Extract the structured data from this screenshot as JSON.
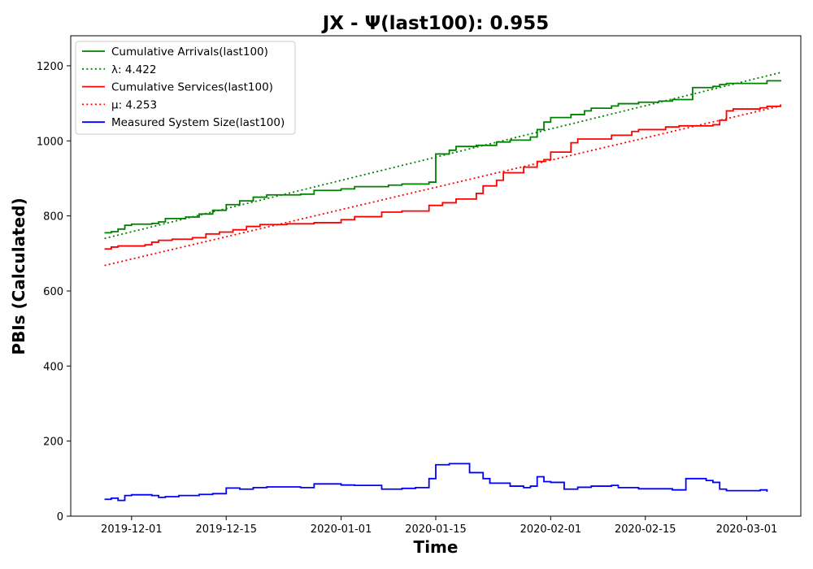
{
  "chart_data": {
    "type": "line",
    "title": "JX -  Ψ(last100): 0.955",
    "xlabel": "Time",
    "ylabel": "PBIs (Calculated)",
    "xlim": [
      "2019-11-22",
      "2020-03-09"
    ],
    "ylim": [
      0,
      1280
    ],
    "x_ticks": [
      "2019-12-01",
      "2019-12-15",
      "2020-01-01",
      "2020-01-15",
      "2020-02-01",
      "2020-02-15",
      "2020-03-01"
    ],
    "y_ticks": [
      0,
      200,
      400,
      600,
      800,
      1000,
      1200
    ],
    "grid": false,
    "legend_position": "top-left",
    "series": [
      {
        "name": "Cumulative Arrivals(last100)",
        "color": "#008000",
        "style": "solid",
        "step": true,
        "points": [
          [
            "2019-11-27",
            755
          ],
          [
            "2019-11-28",
            758
          ],
          [
            "2019-11-29",
            765
          ],
          [
            "2019-11-30",
            775
          ],
          [
            "2019-12-01",
            778
          ],
          [
            "2019-12-04",
            780
          ],
          [
            "2019-12-05",
            784
          ],
          [
            "2019-12-06",
            793
          ],
          [
            "2019-12-09",
            797
          ],
          [
            "2019-12-11",
            805
          ],
          [
            "2019-12-13",
            815
          ],
          [
            "2019-12-15",
            830
          ],
          [
            "2019-12-17",
            840
          ],
          [
            "2019-12-19",
            850
          ],
          [
            "2019-12-21",
            856
          ],
          [
            "2019-12-26",
            858
          ],
          [
            "2019-12-28",
            868
          ],
          [
            "2020-01-01",
            872
          ],
          [
            "2020-01-03",
            878
          ],
          [
            "2020-01-08",
            882
          ],
          [
            "2020-01-10",
            885
          ],
          [
            "2020-01-14",
            890
          ],
          [
            "2020-01-15",
            965
          ],
          [
            "2020-01-17",
            975
          ],
          [
            "2020-01-18",
            985
          ],
          [
            "2020-01-21",
            988
          ],
          [
            "2020-01-24",
            997
          ],
          [
            "2020-01-26",
            1002
          ],
          [
            "2020-01-29",
            1010
          ],
          [
            "2020-01-30",
            1030
          ],
          [
            "2020-01-31",
            1050
          ],
          [
            "2020-02-01",
            1062
          ],
          [
            "2020-02-04",
            1070
          ],
          [
            "2020-02-06",
            1080
          ],
          [
            "2020-02-07",
            1087
          ],
          [
            "2020-02-10",
            1093
          ],
          [
            "2020-02-11",
            1099
          ],
          [
            "2020-02-14",
            1103
          ],
          [
            "2020-02-17",
            1106
          ],
          [
            "2020-02-19",
            1110
          ],
          [
            "2020-02-22",
            1142
          ],
          [
            "2020-02-25",
            1145
          ],
          [
            "2020-02-26",
            1150
          ],
          [
            "2020-02-27",
            1153
          ],
          [
            "2020-03-04",
            1160
          ],
          [
            "2020-03-06",
            1162
          ]
        ]
      },
      {
        "name": "λ: 4.422",
        "color": "#008000",
        "style": "dotted",
        "step": false,
        "points": [
          [
            "2019-11-27",
            740
          ],
          [
            "2020-03-06",
            1182
          ]
        ]
      },
      {
        "name": "Cumulative Services(last100)",
        "color": "#ff0000",
        "style": "solid",
        "step": true,
        "points": [
          [
            "2019-11-27",
            712
          ],
          [
            "2019-11-28",
            717
          ],
          [
            "2019-11-29",
            720
          ],
          [
            "2019-12-03",
            723
          ],
          [
            "2019-12-04",
            730
          ],
          [
            "2019-12-05",
            735
          ],
          [
            "2019-12-07",
            738
          ],
          [
            "2019-12-10",
            742
          ],
          [
            "2019-12-12",
            752
          ],
          [
            "2019-12-14",
            757
          ],
          [
            "2019-12-16",
            763
          ],
          [
            "2019-12-18",
            772
          ],
          [
            "2019-12-20",
            777
          ],
          [
            "2019-12-24",
            779
          ],
          [
            "2019-12-28",
            782
          ],
          [
            "2020-01-01",
            790
          ],
          [
            "2020-01-03",
            798
          ],
          [
            "2020-01-07",
            810
          ],
          [
            "2020-01-10",
            813
          ],
          [
            "2020-01-14",
            828
          ],
          [
            "2020-01-16",
            835
          ],
          [
            "2020-01-18",
            845
          ],
          [
            "2020-01-21",
            860
          ],
          [
            "2020-01-22",
            880
          ],
          [
            "2020-01-24",
            895
          ],
          [
            "2020-01-25",
            915
          ],
          [
            "2020-01-28",
            930
          ],
          [
            "2020-01-30",
            945
          ],
          [
            "2020-01-31",
            950
          ],
          [
            "2020-02-01",
            970
          ],
          [
            "2020-02-04",
            995
          ],
          [
            "2020-02-05",
            1005
          ],
          [
            "2020-02-10",
            1015
          ],
          [
            "2020-02-13",
            1025
          ],
          [
            "2020-02-14",
            1030
          ],
          [
            "2020-02-18",
            1037
          ],
          [
            "2020-02-20",
            1040
          ],
          [
            "2020-02-25",
            1043
          ],
          [
            "2020-02-26",
            1055
          ],
          [
            "2020-02-27",
            1080
          ],
          [
            "2020-02-28",
            1085
          ],
          [
            "2020-03-03",
            1088
          ],
          [
            "2020-03-04",
            1092
          ],
          [
            "2020-03-06",
            1097
          ]
        ]
      },
      {
        "name": "μ: 4.253",
        "color": "#ff0000",
        "style": "dotted",
        "step": false,
        "points": [
          [
            "2019-11-27",
            668
          ],
          [
            "2020-03-06",
            1093
          ]
        ]
      },
      {
        "name": "Measured System Size(last100)",
        "color": "#0000ff",
        "style": "solid",
        "step": true,
        "points": [
          [
            "2019-11-27",
            45
          ],
          [
            "2019-11-28",
            48
          ],
          [
            "2019-11-29",
            42
          ],
          [
            "2019-11-30",
            55
          ],
          [
            "2019-12-01",
            57
          ],
          [
            "2019-12-04",
            55
          ],
          [
            "2019-12-05",
            50
          ],
          [
            "2019-12-06",
            52
          ],
          [
            "2019-12-08",
            55
          ],
          [
            "2019-12-11",
            58
          ],
          [
            "2019-12-13",
            60
          ],
          [
            "2019-12-15",
            75
          ],
          [
            "2019-12-17",
            72
          ],
          [
            "2019-12-19",
            76
          ],
          [
            "2019-12-21",
            78
          ],
          [
            "2019-12-26",
            76
          ],
          [
            "2019-12-28",
            86
          ],
          [
            "2020-01-01",
            83
          ],
          [
            "2020-01-03",
            82
          ],
          [
            "2020-01-07",
            72
          ],
          [
            "2020-01-10",
            74
          ],
          [
            "2020-01-12",
            76
          ],
          [
            "2020-01-14",
            100
          ],
          [
            "2020-01-15",
            137
          ],
          [
            "2020-01-17",
            140
          ],
          [
            "2020-01-20",
            116
          ],
          [
            "2020-01-22",
            100
          ],
          [
            "2020-01-23",
            88
          ],
          [
            "2020-01-26",
            80
          ],
          [
            "2020-01-28",
            76
          ],
          [
            "2020-01-29",
            80
          ],
          [
            "2020-01-30",
            105
          ],
          [
            "2020-01-31",
            92
          ],
          [
            "2020-02-01",
            90
          ],
          [
            "2020-02-03",
            72
          ],
          [
            "2020-02-05",
            77
          ],
          [
            "2020-02-07",
            80
          ],
          [
            "2020-02-10",
            82
          ],
          [
            "2020-02-11",
            76
          ],
          [
            "2020-02-14",
            73
          ],
          [
            "2020-02-19",
            70
          ],
          [
            "2020-02-21",
            100
          ],
          [
            "2020-02-24",
            95
          ],
          [
            "2020-02-25",
            90
          ],
          [
            "2020-02-26",
            72
          ],
          [
            "2020-02-27",
            68
          ],
          [
            "2020-03-03",
            70
          ],
          [
            "2020-03-04",
            65
          ]
        ]
      }
    ]
  }
}
